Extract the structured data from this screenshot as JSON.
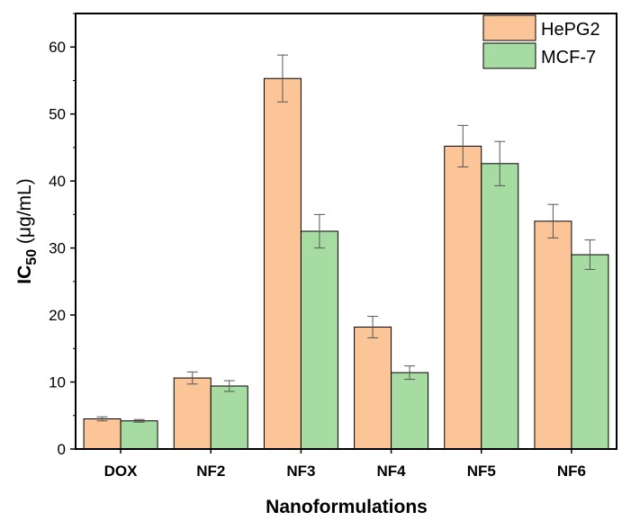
{
  "chart_data": {
    "type": "bar",
    "categories": [
      "DOX",
      "NF2",
      "NF3",
      "NF4",
      "NF5",
      "NF6"
    ],
    "series": [
      {
        "name": "HePG2",
        "color": "#FBC598",
        "values": [
          4.5,
          10.6,
          55.3,
          18.2,
          45.2,
          34.0
        ],
        "errors": [
          0.3,
          0.9,
          3.5,
          1.6,
          3.1,
          2.5
        ]
      },
      {
        "name": "MCF-7",
        "color": "#A6DBA1",
        "values": [
          4.2,
          9.4,
          32.5,
          11.4,
          42.6,
          29.0
        ],
        "errors": [
          0.2,
          0.8,
          2.5,
          1.0,
          3.3,
          2.2
        ]
      }
    ],
    "xlabel": "Nanoformulations",
    "ylabel_main": "IC",
    "ylabel_sub": "50",
    "ylabel_rest": " (μg/mL)",
    "ylim": [
      0,
      65
    ],
    "yticks": [
      "0",
      "10",
      "20",
      "30",
      "40",
      "50",
      "60"
    ],
    "grid": false,
    "legend_position": "top-right"
  }
}
